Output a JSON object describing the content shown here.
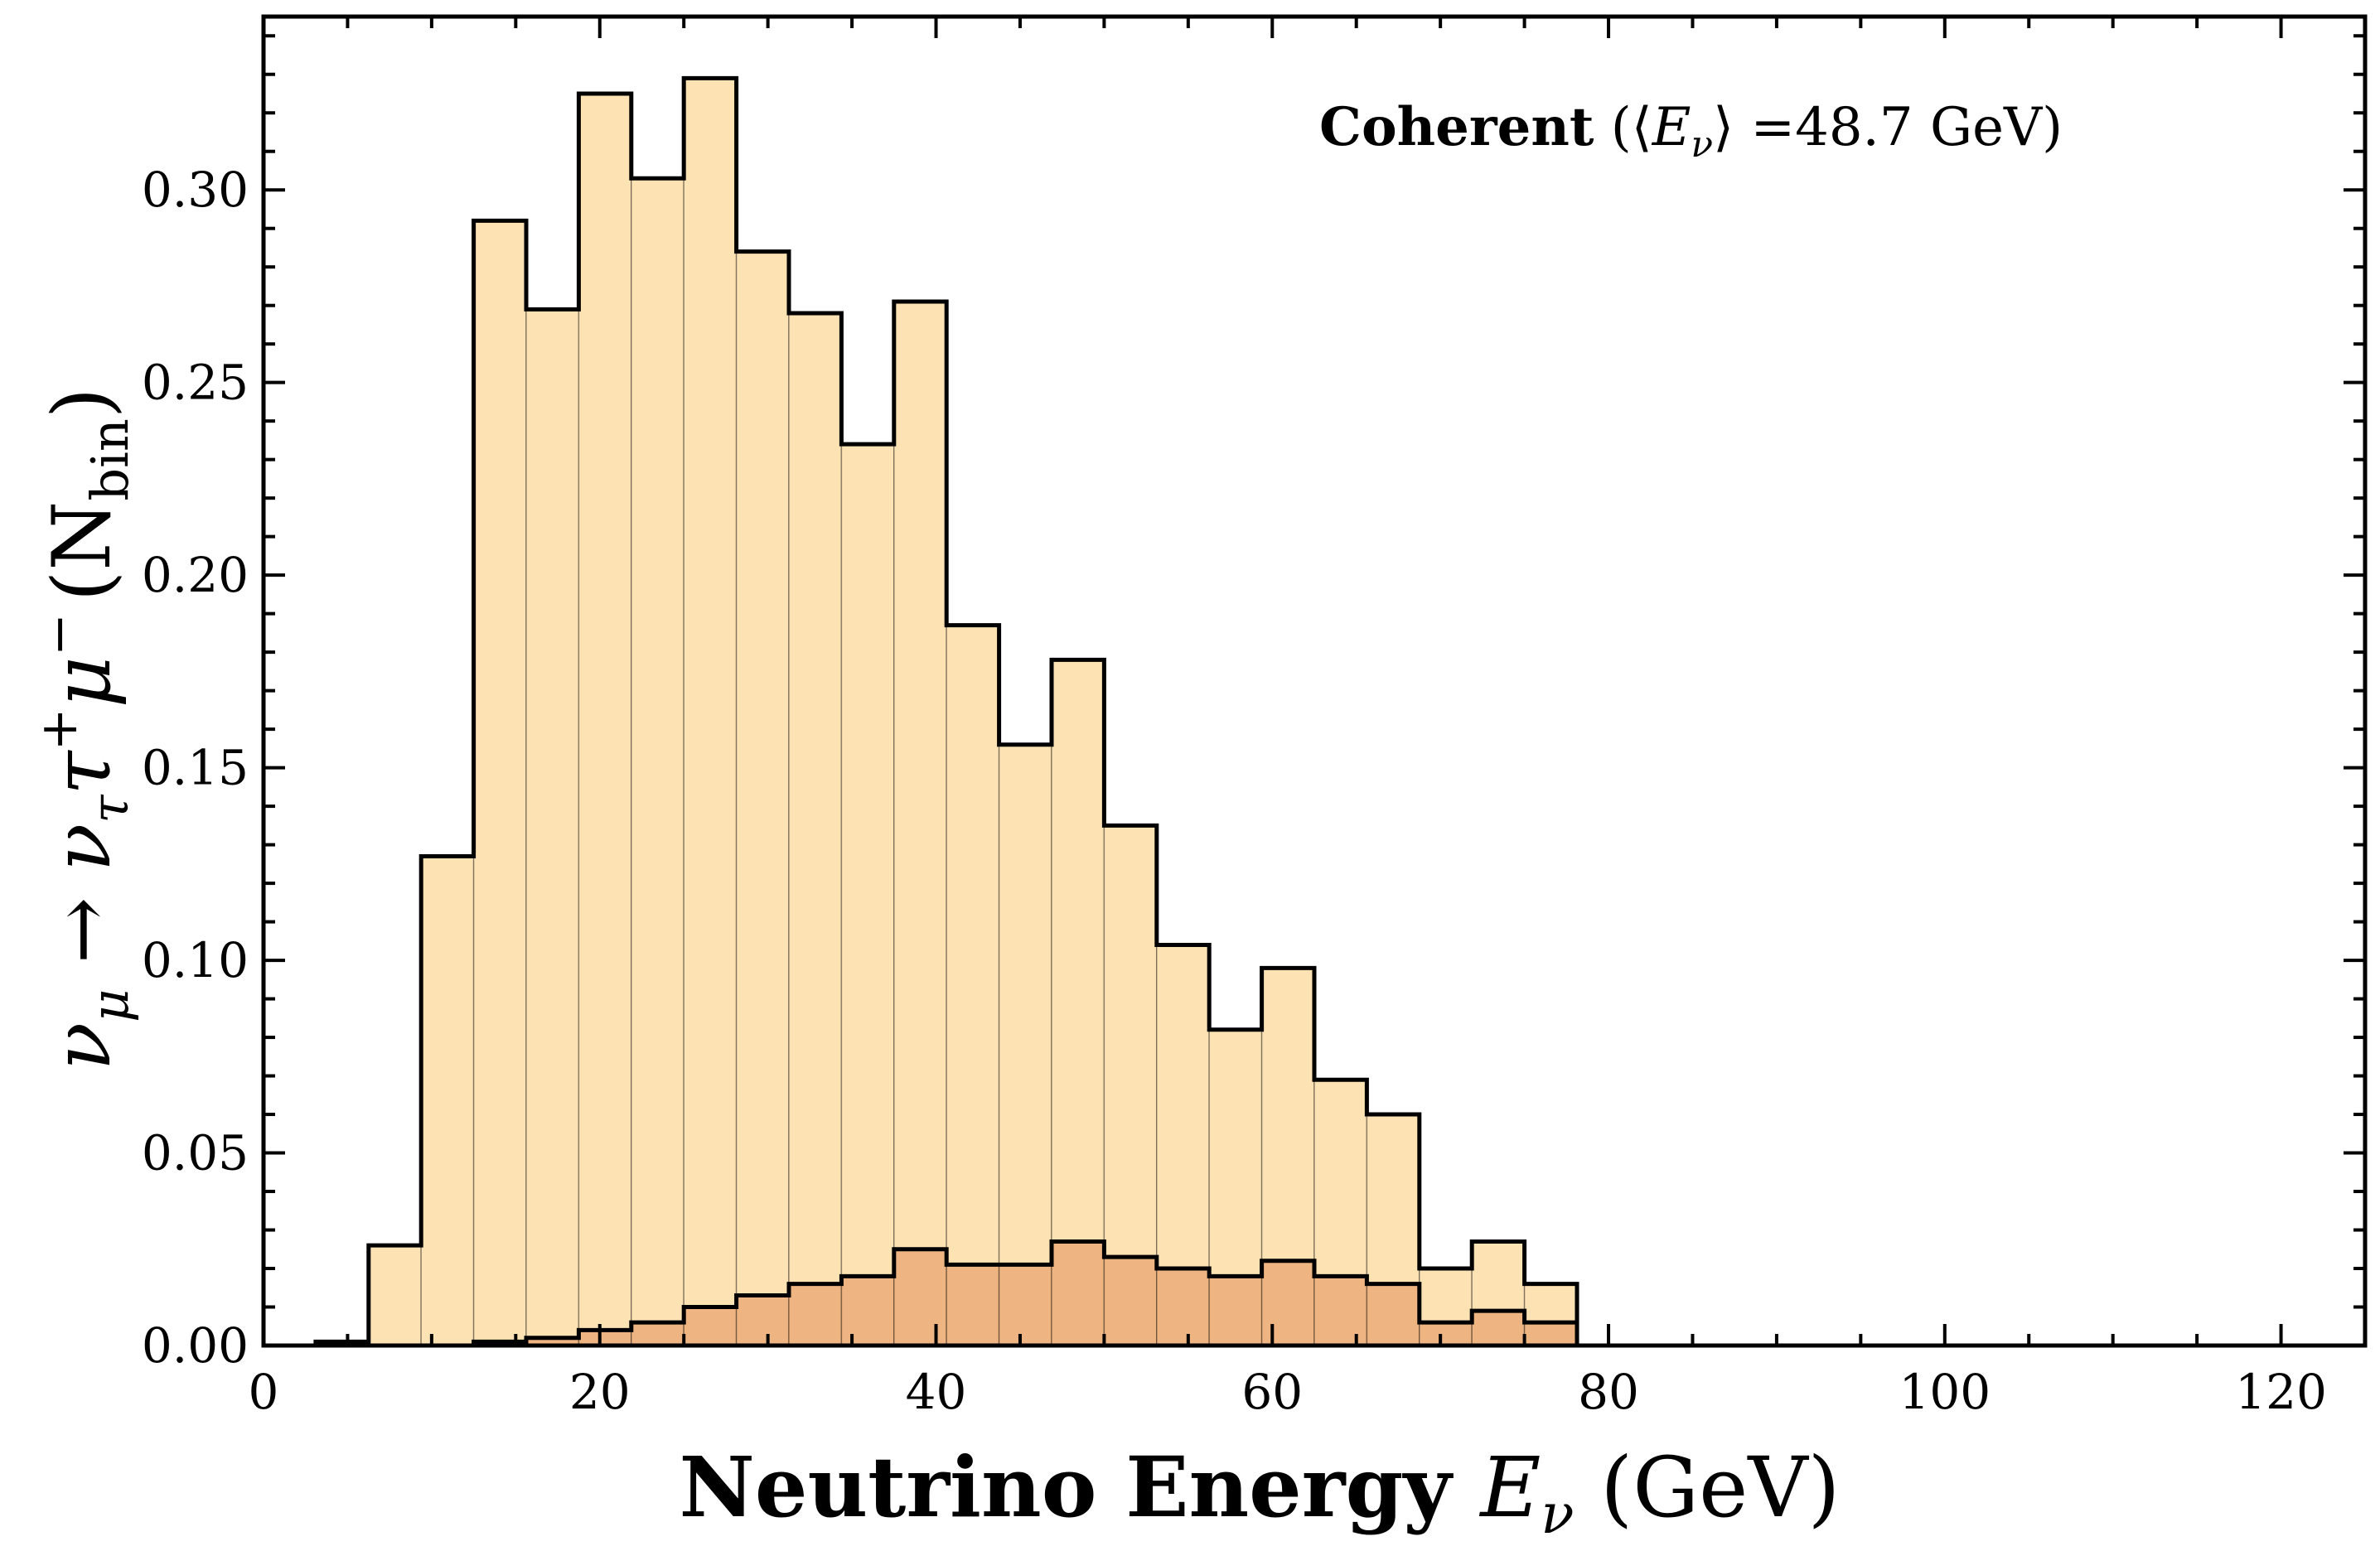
{
  "chart_data": {
    "type": "bar",
    "title": "",
    "annotation": {
      "bold": "Coherent",
      "rest_open": " (⟨",
      "rest_var": "E",
      "rest_sub": "ν",
      "rest_close": "⟩ =48.7 GeV)"
    },
    "xlabel": {
      "bold": "Neutrino Energy ",
      "var": "E",
      "sub": "ν",
      "unit": " (GeV)"
    },
    "ylabel": {
      "main": "ν",
      "sub1": "μ",
      "arrow": " → ν",
      "sub2": "τ",
      "tau": "τ",
      "sup1": "+",
      "mu": "μ",
      "sup2": "−",
      "paren_open": "(N",
      "sub3": "bin",
      "paren_close": ")"
    },
    "xlim": [
      0,
      125
    ],
    "ylim": [
      0,
      0.345
    ],
    "xticks": [
      "0",
      "20",
      "40",
      "60",
      "80",
      "100",
      "120"
    ],
    "yticks": [
      "0.00",
      "0.05",
      "0.10",
      "0.15",
      "0.20",
      "0.25",
      "0.30"
    ],
    "bin_edges": [
      3.1,
      6.25,
      9.375,
      12.5,
      15.625,
      18.75,
      21.875,
      25,
      28.125,
      31.25,
      34.375,
      37.5,
      40.625,
      43.75,
      46.875,
      50,
      53.125,
      56.25,
      59.375,
      62.5,
      65.625,
      68.75,
      71.875,
      75,
      78.125
    ],
    "series": [
      {
        "values": [
          0.001,
          0.026,
          0.127,
          0.292,
          0.269,
          0.325,
          0.303,
          0.329,
          0.284,
          0.268,
          0.234,
          0.271,
          0.187,
          0.156,
          0.178,
          0.135,
          0.104,
          0.082,
          0.098,
          0.069,
          0.06,
          0.02,
          0.027,
          0.016
        ],
        "color": "#fde2b3"
      },
      {
        "values": [
          0.0,
          0.0,
          0.0,
          0.001,
          0.002,
          0.004,
          0.006,
          0.01,
          0.013,
          0.016,
          0.018,
          0.025,
          0.021,
          0.021,
          0.027,
          0.023,
          0.02,
          0.018,
          0.022,
          0.018,
          0.016,
          0.006,
          0.009,
          0.006
        ],
        "color": "#eeb481"
      }
    ]
  }
}
